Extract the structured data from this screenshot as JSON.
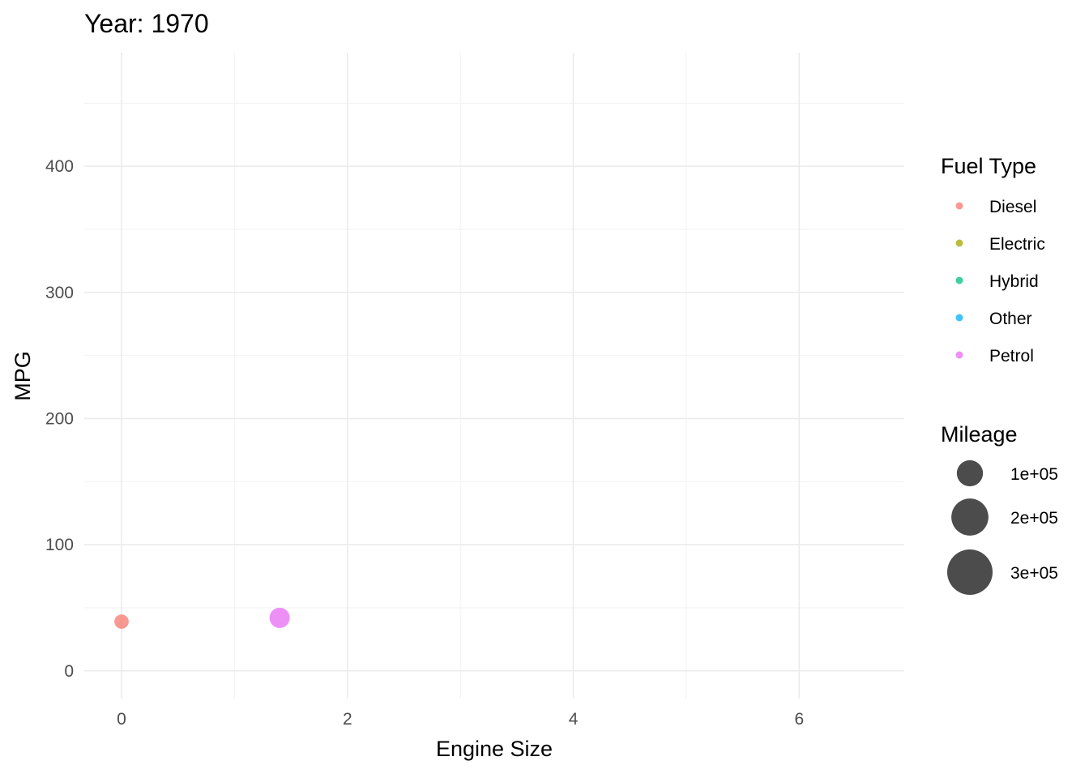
{
  "chart_data": {
    "type": "scatter",
    "title": "Year: 1970",
    "xlabel": "Engine Size",
    "ylabel": "MPG",
    "xlim": [
      -0.33,
      6.93
    ],
    "ylim": [
      -22,
      490
    ],
    "x_ticks": [
      0,
      2,
      4,
      6
    ],
    "y_ticks": [
      0,
      100,
      200,
      300,
      400
    ],
    "grid": true,
    "legend_position": "right",
    "color_legend": {
      "title": "Fuel Type",
      "entries": [
        {
          "label": "Diesel",
          "color": "#F8766D"
        },
        {
          "label": "Electric",
          "color": "#A3A500"
        },
        {
          "label": "Hybrid",
          "color": "#00BF7D"
        },
        {
          "label": "Other",
          "color": "#00B0F6"
        },
        {
          "label": "Petrol",
          "color": "#E76BF3"
        }
      ]
    },
    "size_legend": {
      "title": "Mileage",
      "entries": [
        {
          "label": "1e+05",
          "value": 100000
        },
        {
          "label": "2e+05",
          "value": 200000
        },
        {
          "label": "3e+05",
          "value": 300000
        }
      ]
    },
    "points": [
      {
        "x": 0.0,
        "y": 39,
        "fuel": "Diesel",
        "mileage": 30000
      },
      {
        "x": 1.4,
        "y": 42,
        "fuel": "Petrol",
        "mileage": 60000
      }
    ]
  }
}
